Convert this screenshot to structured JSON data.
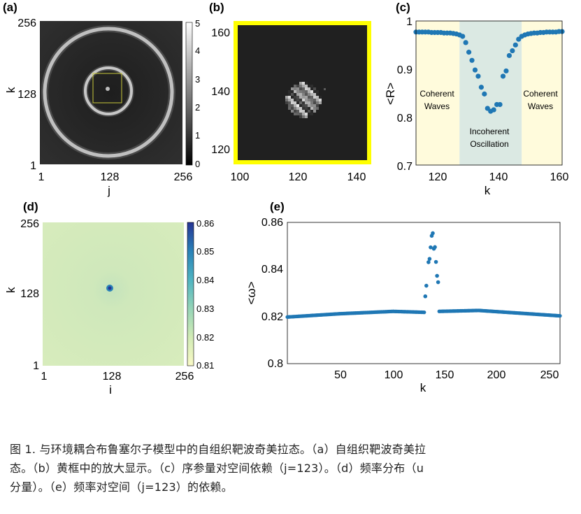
{
  "panels": {
    "a": {
      "label": "(a)",
      "ytick_top": "256",
      "ytick_mid": "128",
      "ytick_bot": "1",
      "xtick_left": "1",
      "xtick_mid": "128",
      "xtick_right": "256",
      "xlabel": "j",
      "ylabel": "k",
      "colorbar_ticks": [
        "5",
        "4",
        "3",
        "2",
        "1",
        "0"
      ]
    },
    "b": {
      "label": "(b)",
      "yticks": [
        "160",
        "140",
        "120"
      ],
      "xticks": [
        "100",
        "120",
        "140"
      ],
      "frame_color": "#ffff00"
    },
    "c": {
      "label": "(c)",
      "yticks": [
        "1",
        "0.9",
        "0.8",
        "0.7"
      ],
      "xticks": [
        "120",
        "140",
        "160"
      ],
      "ylabel": "<R>",
      "xlabel": "k",
      "left_region": [
        "Coherent",
        "Waves"
      ],
      "mid_region": [
        "Incoherent",
        "Oscillation"
      ],
      "right_region": [
        "Coherent",
        "Waves"
      ]
    },
    "d": {
      "label": "(d)",
      "ytick_top": "256",
      "ytick_mid": "128",
      "ytick_bot": "1",
      "xtick_left": "1",
      "xtick_mid": "128",
      "xtick_right": "256",
      "xlabel": "i",
      "ylabel": "k",
      "colorbar_ticks": [
        "0.86",
        "0.85",
        "0.84",
        "0.83",
        "0.82",
        "0.81"
      ]
    },
    "e": {
      "label": "(e)",
      "yticks": [
        "0.86",
        "0.84",
        "0.82",
        "0.8"
      ],
      "xticks": [
        "50",
        "100",
        "150",
        "200",
        "250"
      ],
      "ylabel": "<ω>",
      "xlabel": "k"
    }
  },
  "chart_data": [
    {
      "type": "scatter",
      "panel": "c",
      "xlabel": "k",
      "ylabel": "<R>",
      "xlim": [
        113,
        160
      ],
      "ylim": [
        0.7,
        1.0
      ],
      "x": [
        113,
        114,
        115,
        116,
        117,
        118,
        119,
        120,
        121,
        122,
        123,
        124,
        125,
        126,
        127,
        128,
        129,
        130,
        131,
        132,
        133,
        134,
        135,
        136,
        137,
        138,
        139,
        140,
        141,
        142,
        143,
        144,
        145,
        146,
        147,
        148,
        149,
        150,
        151,
        152,
        153,
        154,
        155,
        156,
        157,
        158,
        159,
        160
      ],
      "y": [
        0.977,
        0.977,
        0.977,
        0.977,
        0.977,
        0.976,
        0.976,
        0.976,
        0.976,
        0.975,
        0.975,
        0.975,
        0.974,
        0.973,
        0.971,
        0.968,
        0.955,
        0.935,
        0.918,
        0.898,
        0.885,
        0.862,
        0.848,
        0.818,
        0.812,
        0.815,
        0.826,
        0.826,
        0.885,
        0.896,
        0.928,
        0.938,
        0.95,
        0.962,
        0.968,
        0.971,
        0.973,
        0.974,
        0.975,
        0.975,
        0.976,
        0.976,
        0.977,
        0.977,
        0.977,
        0.977,
        0.978,
        0.978
      ],
      "shaded_regions": [
        [
          113,
          127,
          "#fffbdc"
        ],
        [
          127,
          147,
          "#dbe9e3"
        ],
        [
          147,
          160,
          "#fffbdc"
        ]
      ]
    },
    {
      "type": "scatter",
      "panel": "e",
      "xlabel": "k",
      "ylabel": "<ω>",
      "xlim": [
        1,
        256
      ],
      "ylim": [
        0.8,
        0.86
      ],
      "base_curve": {
        "x": [
          1,
          50,
          100,
          129,
          143,
          180,
          256
        ],
        "y": [
          0.8198,
          0.8212,
          0.8222,
          0.8218,
          0.8222,
          0.8226,
          0.8203
        ]
      },
      "outliers": {
        "x": [
          130,
          131,
          133,
          134,
          135,
          136,
          137,
          138,
          139,
          140,
          141,
          142
        ],
        "y": [
          0.8286,
          0.8331,
          0.8431,
          0.8445,
          0.8494,
          0.8543,
          0.8554,
          0.8488,
          0.8495,
          0.8432,
          0.8373,
          0.8346
        ]
      }
    }
  ],
  "caption": {
    "line1": "图 1. 与环境耦合布鲁塞尔子模型中的自组织靶波奇美拉态。（a）自组织靶波奇美拉",
    "line2": "态。（b）黄框中的放大显示。（c）序参量对空间依赖（j=123）。（d）频率分布（u",
    "line3": "分量）。（e）频率对空间（j=123）的依赖。"
  }
}
